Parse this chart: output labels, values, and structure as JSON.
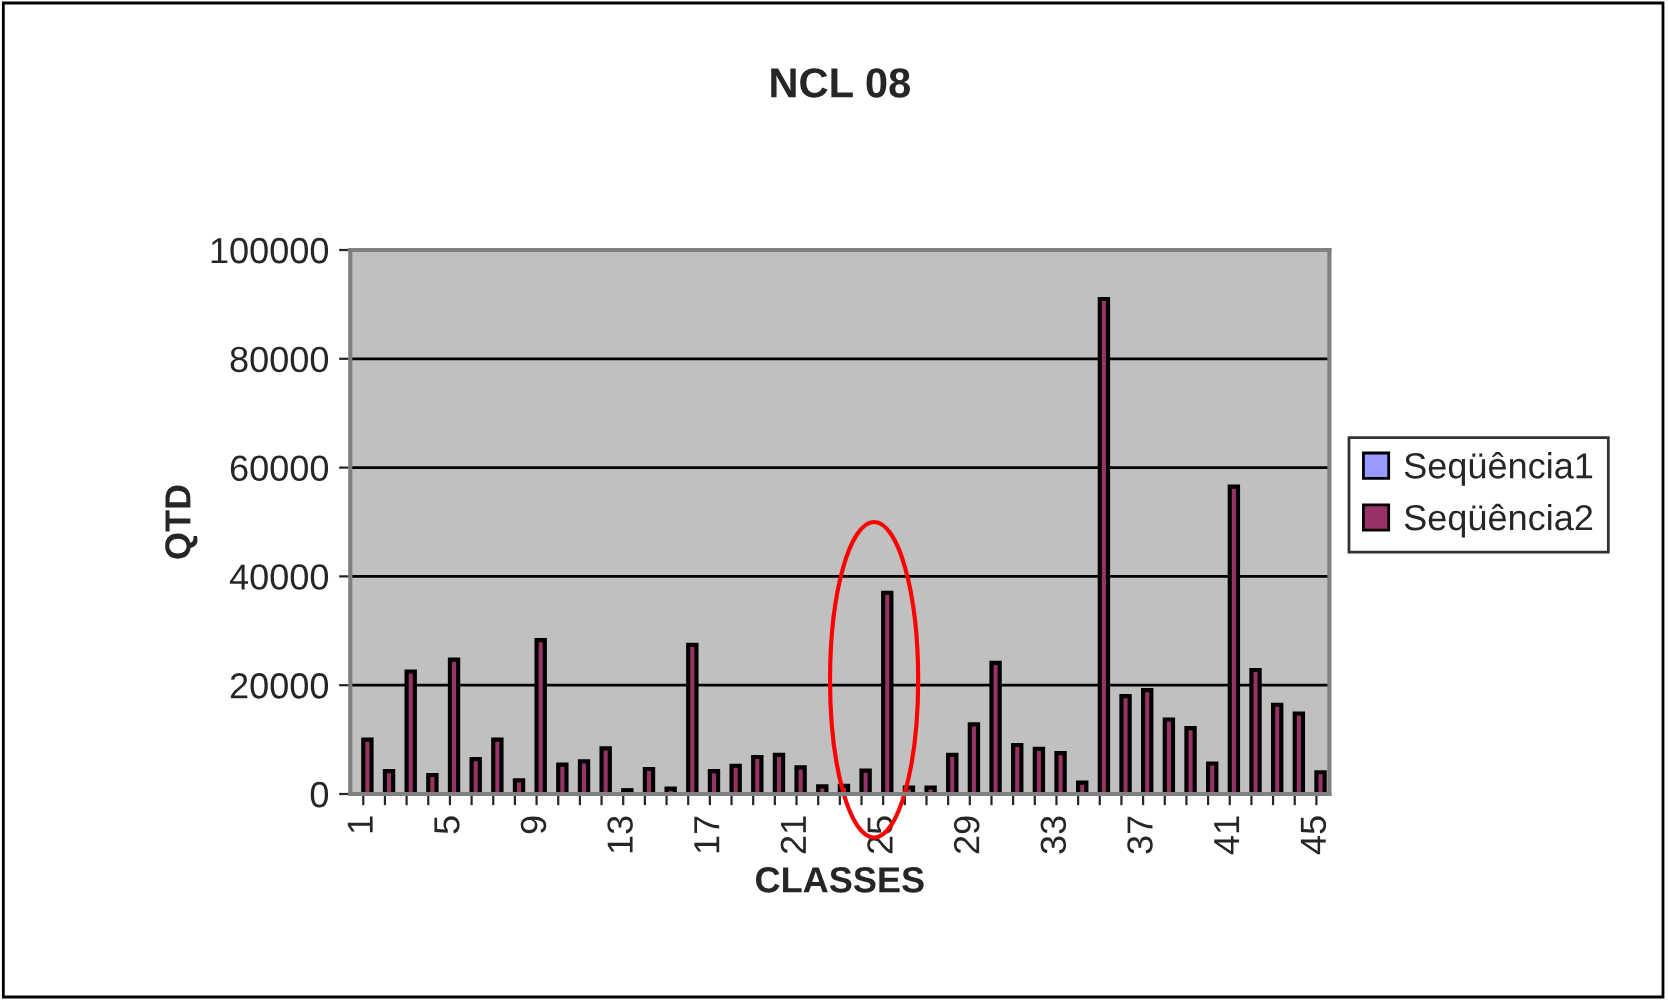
{
  "chart_data": {
    "type": "bar",
    "title": "NCL 08",
    "xlabel": "CLASSES",
    "ylabel": "QTD",
    "categories": [
      "1",
      null,
      null,
      null,
      "5",
      null,
      null,
      null,
      "9",
      null,
      null,
      null,
      "13",
      null,
      null,
      null,
      "17",
      null,
      null,
      null,
      "21",
      null,
      null,
      null,
      "25",
      null,
      null,
      null,
      "29",
      null,
      null,
      null,
      "33",
      null,
      null,
      null,
      "37",
      null,
      null,
      null,
      "41",
      null,
      null,
      null,
      "45"
    ],
    "series": [
      {
        "name": "Seqüência1",
        "color": "#9999ff",
        "values": [
          null,
          null,
          null,
          null,
          null,
          null,
          null,
          null,
          null,
          null,
          null,
          null,
          null,
          null,
          null,
          null,
          null,
          null,
          null,
          null,
          null,
          null,
          null,
          null,
          null,
          null,
          null,
          null,
          null,
          null,
          null,
          null,
          null,
          null,
          null,
          null,
          null,
          null,
          null,
          null,
          null,
          null,
          null,
          null,
          null
        ]
      },
      {
        "name": "Seqüência2",
        "color": "#993366",
        "values": [
          10000,
          4200,
          22500,
          3500,
          24700,
          6400,
          10000,
          2500,
          28300,
          5400,
          6000,
          8400,
          700,
          4600,
          1000,
          27400,
          4200,
          5200,
          6800,
          7200,
          4900,
          1400,
          1500,
          4300,
          37000,
          1200,
          1200,
          7200,
          12800,
          24100,
          9000,
          8300,
          7500,
          2100,
          91000,
          18000,
          19100,
          13700,
          12100,
          5600,
          56500,
          22800,
          16400,
          14800,
          4000
        ]
      }
    ],
    "ylim": [
      0,
      100000
    ],
    "yticks": [
      0,
      20000,
      40000,
      60000,
      80000,
      100000
    ],
    "grid": "y",
    "legend": "right"
  }
}
